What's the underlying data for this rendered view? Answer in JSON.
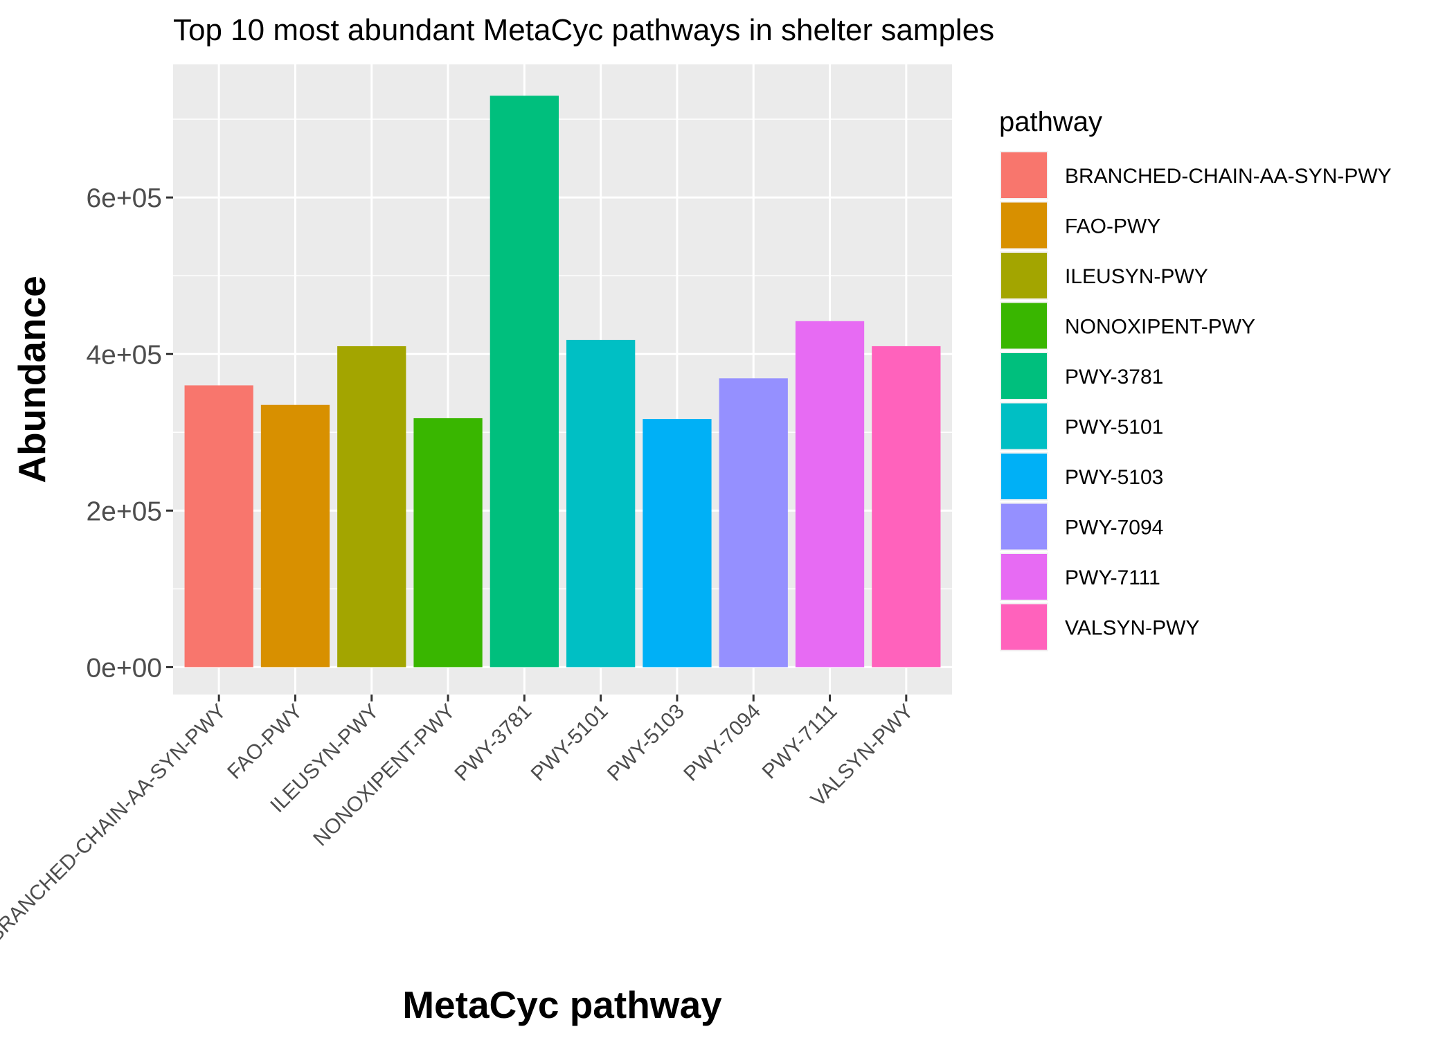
{
  "chart_data": {
    "type": "bar",
    "title": "Top 10 most abundant MetaCyc pathways in shelter samples",
    "xlabel": "MetaCyc pathway",
    "ylabel": "Abundance",
    "categories": [
      "BRANCHED-CHAIN-AA-SYN-PWY",
      "FAO-PWY",
      "ILEUSYN-PWY",
      "NONOXIPENT-PWY",
      "PWY-3781",
      "PWY-5101",
      "PWY-5103",
      "PWY-7094",
      "PWY-7111",
      "VALSYN-PWY"
    ],
    "values": [
      360000,
      335000,
      410000,
      318000,
      730000,
      418000,
      317000,
      369000,
      442000,
      410000
    ],
    "colors": [
      "#F8766D",
      "#D89000",
      "#A3A500",
      "#39B600",
      "#00BF7D",
      "#00BFC4",
      "#00B0F6",
      "#9590FF",
      "#E76BF3",
      "#FF62BC"
    ],
    "ylim": [
      -35000,
      770000
    ],
    "yticks": [
      0,
      200000,
      400000,
      600000
    ],
    "ytick_labels": [
      "0e+00",
      "2e+05",
      "4e+05",
      "6e+05"
    ],
    "grid": true,
    "panel_background": "#EBEBEB",
    "legend": {
      "title": "pathway",
      "position": "right",
      "entries": [
        "BRANCHED-CHAIN-AA-SYN-PWY",
        "FAO-PWY",
        "ILEUSYN-PWY",
        "NONOXIPENT-PWY",
        "PWY-3781",
        "PWY-5101",
        "PWY-5103",
        "PWY-7094",
        "PWY-7111",
        "VALSYN-PWY"
      ]
    }
  }
}
